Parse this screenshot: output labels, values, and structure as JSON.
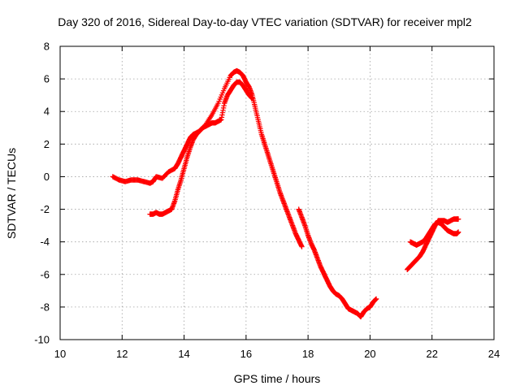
{
  "chart_data": {
    "type": "scatter",
    "title": "Day 320 of 2016, Sidereal Day-to-day VTEC variation (SDTVAR) for receiver mpl2",
    "xlabel": "GPS time / hours",
    "ylabel": "SDTVAR / TECUs",
    "xlim": [
      10,
      24
    ],
    "ylim": [
      -10,
      8
    ],
    "xticks": [
      10,
      12,
      14,
      16,
      18,
      20,
      22,
      24
    ],
    "yticks": [
      -10,
      -8,
      -6,
      -4,
      -2,
      0,
      2,
      4,
      6,
      8
    ],
    "grid": true,
    "marker": "+",
    "series": [
      {
        "name": "SDTVAR",
        "color": "#ff0000",
        "segments": [
          {
            "x": [
              11.7,
              11.9,
              12.1,
              12.3,
              12.5,
              12.7,
              12.9,
              13.0,
              13.1,
              13.3,
              13.5,
              13.7,
              13.8,
              13.9,
              14.0,
              14.1,
              14.2,
              14.3,
              14.5,
              14.7,
              14.9,
              15.1,
              15.3,
              15.5,
              15.6,
              15.7,
              15.8,
              15.9,
              16.0,
              16.1,
              16.2,
              16.3,
              16.4,
              16.5,
              16.6,
              16.7,
              16.8,
              16.9,
              17.0,
              17.1,
              17.2,
              17.3,
              17.4,
              17.5,
              17.6,
              17.7,
              17.8
            ],
            "y": [
              0.0,
              -0.2,
              -0.3,
              -0.2,
              -0.2,
              -0.3,
              -0.4,
              -0.3,
              0.0,
              -0.1,
              0.3,
              0.5,
              0.8,
              1.2,
              1.6,
              2.0,
              2.4,
              2.6,
              2.8,
              3.2,
              3.8,
              4.5,
              5.4,
              6.2,
              6.4,
              6.5,
              6.4,
              6.2,
              5.8,
              5.5,
              5.0,
              4.2,
              3.4,
              2.6,
              2.0,
              1.4,
              0.8,
              0.2,
              -0.4,
              -1.0,
              -1.5,
              -2.0,
              -2.5,
              -3.0,
              -3.5,
              -3.9,
              -4.3
            ]
          },
          {
            "x": [
              12.9,
              13.0,
              13.1,
              13.2,
              13.3,
              13.4,
              13.5,
              13.6,
              13.7,
              13.8,
              13.9,
              14.0,
              14.1,
              14.2,
              14.3,
              14.4,
              14.5,
              14.6,
              14.7,
              14.8,
              14.9,
              15.0,
              15.1,
              15.2,
              15.3,
              15.4,
              15.5,
              15.6,
              15.7,
              15.8,
              15.9,
              16.0,
              16.1,
              16.2
            ],
            "y": [
              -2.3,
              -2.3,
              -2.2,
              -2.3,
              -2.3,
              -2.2,
              -2.1,
              -2.0,
              -1.5,
              -0.8,
              -0.2,
              0.5,
              1.2,
              1.8,
              2.3,
              2.6,
              2.8,
              3.0,
              3.1,
              3.2,
              3.3,
              3.3,
              3.4,
              3.5,
              4.5,
              5.0,
              5.3,
              5.6,
              5.8,
              5.8,
              5.6,
              5.3,
              5.0,
              4.8
            ]
          },
          {
            "x": [
              17.7,
              17.8,
              17.9,
              18.0,
              18.1,
              18.2,
              18.3,
              18.4,
              18.5,
              18.6,
              18.7,
              18.8,
              18.9,
              19.0,
              19.1,
              19.2,
              19.3,
              19.4,
              19.5,
              19.6,
              19.7,
              19.8,
              19.9,
              20.0,
              20.1,
              20.2
            ],
            "y": [
              -2.0,
              -2.5,
              -3.0,
              -3.6,
              -4.1,
              -4.5,
              -5.0,
              -5.5,
              -5.9,
              -6.3,
              -6.7,
              -7.0,
              -7.2,
              -7.3,
              -7.5,
              -7.8,
              -8.1,
              -8.2,
              -8.3,
              -8.4,
              -8.6,
              -8.3,
              -8.1,
              -8.0,
              -7.7,
              -7.5
            ]
          },
          {
            "x": [
              21.2,
              21.3,
              21.4,
              21.5,
              21.6,
              21.7,
              21.8,
              21.9,
              22.0,
              22.1,
              22.2,
              22.3,
              22.4,
              22.5,
              22.6,
              22.7,
              22.8,
              22.85
            ],
            "y": [
              -5.7,
              -5.5,
              -5.3,
              -5.1,
              -4.9,
              -4.6,
              -4.2,
              -3.8,
              -3.4,
              -3.0,
              -2.7,
              -2.7,
              -2.7,
              -2.8,
              -2.7,
              -2.6,
              -2.6,
              -2.6
            ]
          },
          {
            "x": [
              21.3,
              21.4,
              21.5,
              21.6,
              21.7,
              21.8,
              21.9,
              22.0,
              22.1,
              22.2,
              22.3,
              22.4,
              22.5,
              22.6,
              22.7,
              22.8,
              22.85
            ],
            "y": [
              -4.0,
              -4.1,
              -4.2,
              -4.1,
              -4.0,
              -3.8,
              -3.5,
              -3.2,
              -2.9,
              -2.8,
              -2.9,
              -3.1,
              -3.3,
              -3.4,
              -3.5,
              -3.5,
              -3.4
            ]
          }
        ]
      }
    ]
  }
}
